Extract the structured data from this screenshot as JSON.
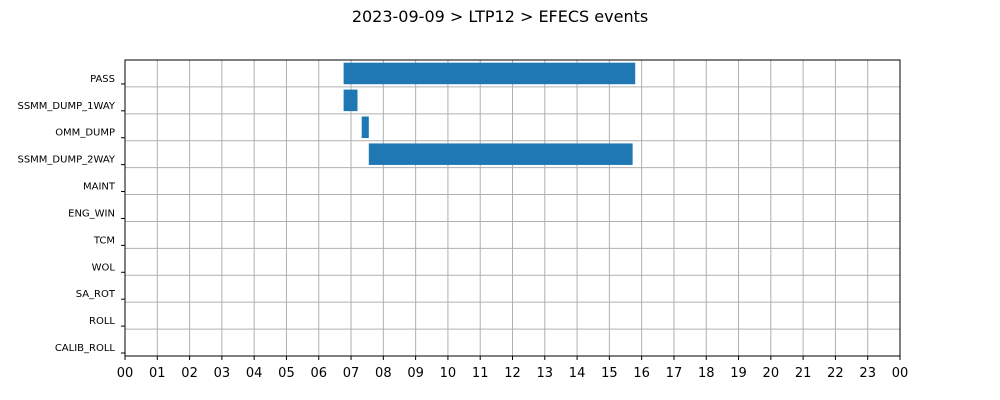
{
  "chart_data": {
    "type": "bar",
    "orientation": "horizontal",
    "title": "2023-09-09 > LTP12 > EFECS events",
    "xlabel": "",
    "ylabel": "",
    "grid": true,
    "xlim": [
      0,
      24
    ],
    "x_tick_labels": [
      "00",
      "01",
      "02",
      "03",
      "04",
      "05",
      "06",
      "07",
      "08",
      "09",
      "10",
      "11",
      "12",
      "13",
      "14",
      "15",
      "16",
      "17",
      "18",
      "19",
      "20",
      "21",
      "22",
      "23",
      "00"
    ],
    "categories": [
      "PASS",
      "SSMM_DUMP_1WAY",
      "OMM_DUMP",
      "SSMM_DUMP_2WAY",
      "MAINT",
      "ENG_WIN",
      "TCM",
      "WOL",
      "SA_ROT",
      "ROLL",
      "CALIB_ROLL"
    ],
    "events": [
      {
        "category": "PASS",
        "start": 6.77,
        "end": 15.8
      },
      {
        "category": "SSMM_DUMP_1WAY",
        "start": 6.77,
        "end": 7.2
      },
      {
        "category": "OMM_DUMP",
        "start": 7.33,
        "end": 7.55
      },
      {
        "category": "SSMM_DUMP_2WAY",
        "start": 7.55,
        "end": 15.72
      }
    ],
    "bar_color": "#1f77b4",
    "grid_color": "#b0b0b0"
  }
}
